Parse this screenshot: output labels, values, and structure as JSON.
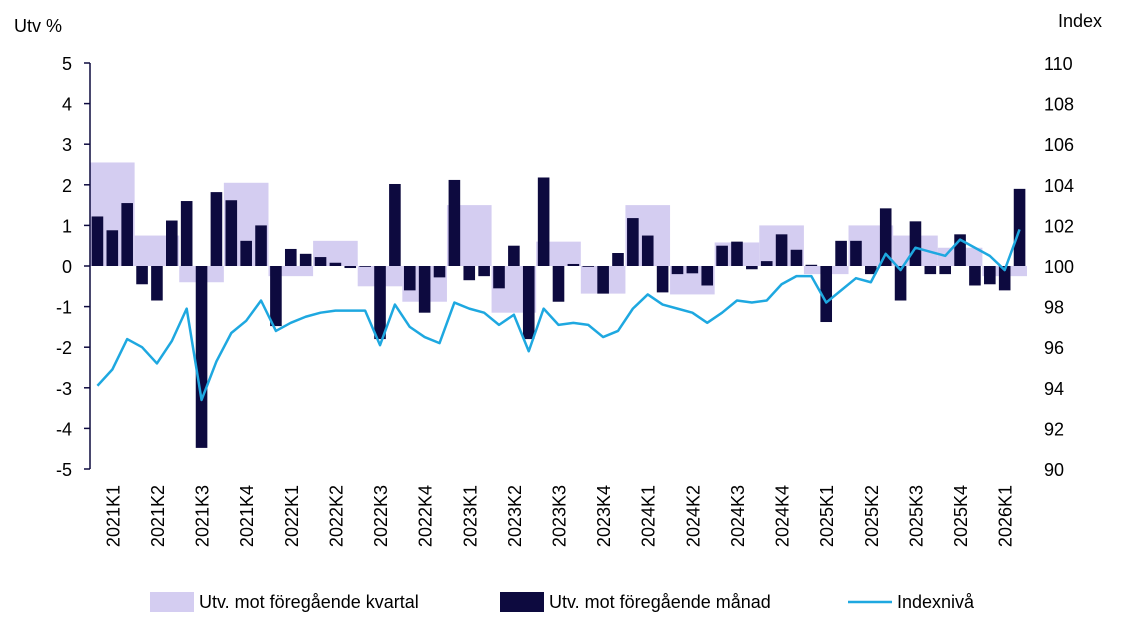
{
  "chart_data": {
    "type": "bar",
    "left_axis_title": "Utv %",
    "right_axis_title": "Index",
    "y_left": {
      "min": -5,
      "max": 5,
      "ticks": [
        "5",
        "4",
        "3",
        "2",
        "1",
        "0",
        "-1",
        "-2",
        "-3",
        "-4",
        "-5"
      ]
    },
    "y_right": {
      "min": 90,
      "max": 110,
      "ticks": [
        "110",
        "108",
        "106",
        "104",
        "102",
        "100",
        "98",
        "96",
        "94",
        "92",
        "90"
      ]
    },
    "quarters": [
      "2021K1",
      "2021K2",
      "2021K3",
      "2021K4",
      "2022K1",
      "2022K2",
      "2022K3",
      "2022K4",
      "2023K1",
      "2023K2",
      "2023K3",
      "2023K4",
      "2024K1",
      "2024K2",
      "2024K3",
      "2024K4",
      "2025K1",
      "2025K2",
      "2025K3",
      "2025K4",
      "2026K1"
    ],
    "months_count": 63,
    "series": [
      {
        "name": "Utv. mot föregående kvartal",
        "kind": "quarter-bar",
        "color": "#d4cdf1",
        "values": [
          2.55,
          0.75,
          -0.4,
          2.05,
          -0.25,
          0.62,
          -0.5,
          -0.88,
          1.5,
          -1.15,
          0.6,
          -0.68,
          1.5,
          -0.7,
          0.58,
          1.0,
          -0.2,
          1.0,
          0.75,
          0.45,
          -0.25
        ]
      },
      {
        "name": "Utv. mot föregående månad",
        "kind": "month-bar",
        "color": "#0d0a3f",
        "values": [
          1.22,
          0.88,
          1.55,
          -0.45,
          -0.85,
          1.12,
          1.6,
          -4.48,
          1.82,
          1.62,
          0.62,
          1.0,
          -1.48,
          0.42,
          0.3,
          0.22,
          0.08,
          -0.05,
          -0.02,
          -1.8,
          2.02,
          -0.6,
          -1.15,
          -0.28,
          2.12,
          -0.35,
          -0.25,
          -0.55,
          0.5,
          -1.8,
          2.18,
          -0.88,
          0.05,
          -0.02,
          -0.68,
          0.32,
          1.18,
          0.75,
          -0.65,
          -0.2,
          -0.18,
          -0.48,
          0.5,
          0.6,
          -0.08,
          0.12,
          0.78,
          0.4,
          0.03,
          -1.38,
          0.62,
          0.62,
          -0.2,
          1.42,
          -0.85,
          1.1,
          -0.2,
          -0.2,
          0.78,
          -0.48,
          -0.45,
          -0.6,
          1.9
        ]
      },
      {
        "name": "Indexnivå",
        "kind": "line",
        "color": "#1ea8e0",
        "values": [
          94.1,
          94.9,
          96.4,
          96.0,
          95.2,
          96.3,
          97.9,
          93.4,
          95.3,
          96.7,
          97.3,
          98.3,
          96.8,
          97.2,
          97.5,
          97.7,
          97.8,
          97.8,
          97.8,
          96.1,
          98.1,
          97.0,
          96.5,
          96.2,
          98.2,
          97.9,
          97.7,
          97.1,
          97.6,
          95.8,
          97.9,
          97.1,
          97.2,
          97.1,
          96.5,
          96.8,
          97.9,
          98.6,
          98.1,
          97.9,
          97.7,
          97.2,
          97.7,
          98.3,
          98.2,
          98.3,
          99.1,
          99.5,
          99.5,
          98.2,
          98.8,
          99.4,
          99.2,
          100.6,
          99.8,
          100.9,
          100.7,
          100.5,
          101.3,
          100.9,
          100.5,
          99.8,
          101.8
        ]
      }
    ],
    "legend_position": "bottom",
    "grid": false
  }
}
